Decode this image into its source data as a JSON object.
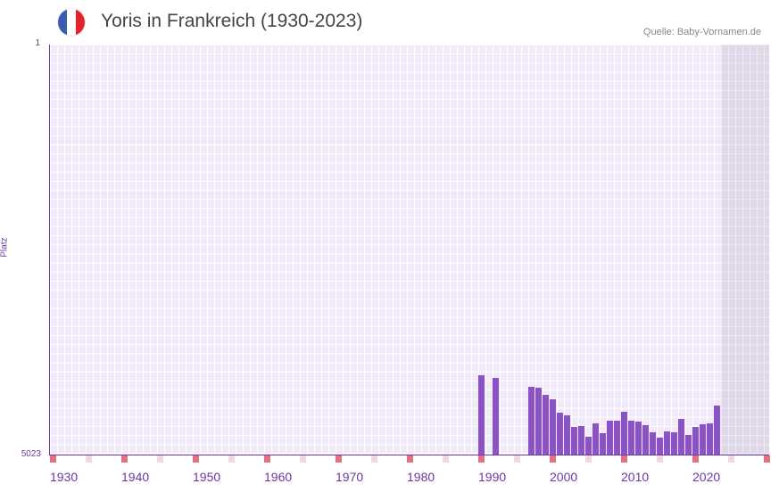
{
  "header": {
    "title": "Yoris in Frankreich (1930-2023)",
    "source": "Quelle: Baby-Vornamen.de"
  },
  "colors": {
    "bar": "#8c53c6",
    "axis": "#6a3aa0",
    "flag": [
      "#3a5bb0",
      "#ffffff",
      "#e8222a"
    ]
  },
  "chart_data": {
    "type": "bar",
    "title": "Yoris in Frankreich (1930-2023)",
    "xlabel": "",
    "ylabel": "Platz",
    "ylim": [
      5023,
      1
    ],
    "y_tick_labels": [
      "1",
      "5023"
    ],
    "xlim": [
      1930,
      2030
    ],
    "x_tick_labels": [
      "1930",
      "1940",
      "1950",
      "1960",
      "1970",
      "1980",
      "1990",
      "2000",
      "2010",
      "2020"
    ],
    "x": [
      1990,
      1992,
      1997,
      1998,
      1999,
      2000,
      2001,
      2002,
      2003,
      2004,
      2005,
      2006,
      2007,
      2008,
      2009,
      2010,
      2011,
      2012,
      2013,
      2014,
      2015,
      2016,
      2017,
      2018,
      2019,
      2020,
      2021,
      2022,
      2023
    ],
    "values": [
      4051,
      4083,
      4192,
      4203,
      4291,
      4346,
      4510,
      4543,
      4684,
      4673,
      4804,
      4640,
      4761,
      4608,
      4608,
      4499,
      4608,
      4619,
      4662,
      4750,
      4815,
      4739,
      4750,
      4586,
      4783,
      4684,
      4652,
      4640,
      4422
    ]
  }
}
